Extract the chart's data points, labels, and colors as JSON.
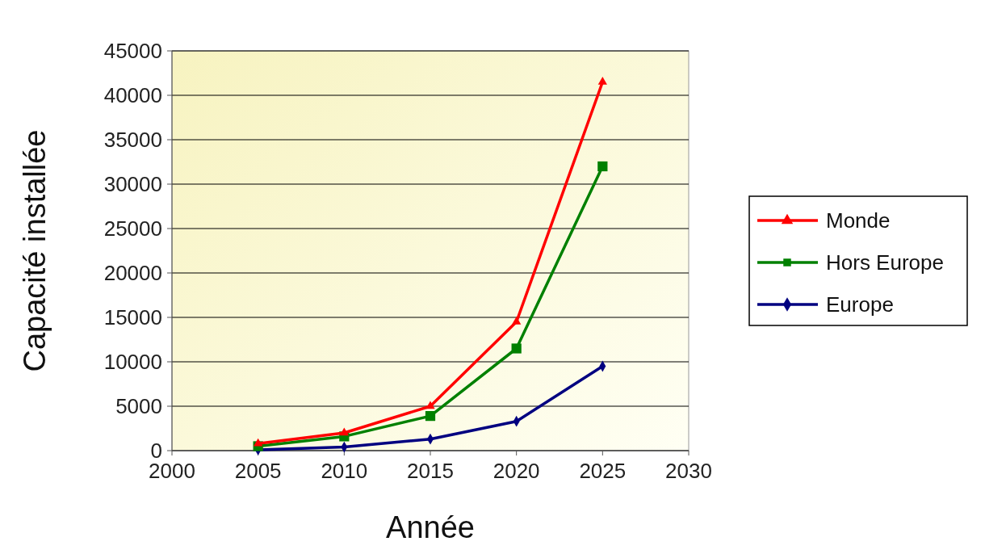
{
  "chart_data": {
    "type": "line",
    "xlabel": "Année",
    "ylabel": "Capacité installée",
    "x": [
      2005,
      2010,
      2015,
      2020,
      2025
    ],
    "series": [
      {
        "name": "Monde",
        "color": "#ff0000",
        "marker": "triangle",
        "values": [
          800,
          2000,
          5000,
          14500,
          41500
        ]
      },
      {
        "name": "Hors Europe",
        "color": "#008000",
        "marker": "square",
        "values": [
          500,
          1600,
          3900,
          11500,
          32000
        ]
      },
      {
        "name": "Europe",
        "color": "#000080",
        "marker": "diamond",
        "values": [
          100,
          400,
          1300,
          3300,
          9500
        ]
      }
    ],
    "xlim": [
      2000,
      2030
    ],
    "xticks": [
      2000,
      2005,
      2010,
      2015,
      2020,
      2025,
      2030
    ],
    "ylim": [
      0,
      45000
    ],
    "yticks": [
      0,
      5000,
      10000,
      15000,
      20000,
      25000,
      30000,
      35000,
      40000,
      45000
    ],
    "grid": "y",
    "legend": "right"
  }
}
